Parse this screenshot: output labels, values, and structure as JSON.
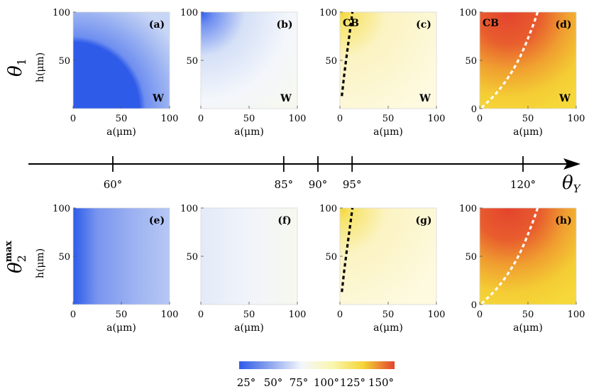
{
  "row_labels": {
    "top": "θ",
    "top_sub": "1",
    "bottom": "θ",
    "bottom_sub": "2",
    "bottom_sup": "max"
  },
  "axis": {
    "xlabel": "a(μm)",
    "ylabel": "h(μm)",
    "x_ticks": [
      "0",
      "50",
      "100"
    ],
    "y_ticks": [
      "100",
      "50",
      "0"
    ]
  },
  "theta_axis": {
    "label": "θ",
    "label_sub": "Y",
    "ticks": [
      "60°",
      "85°",
      "90°",
      "95°",
      "120°"
    ]
  },
  "colorbar": {
    "ticks": [
      "25°",
      "50°",
      "75°",
      "100°",
      "125°",
      "150°"
    ],
    "colors": [
      "#2f5be9",
      "#8da6ee",
      "#f3f6fb",
      "#fbf6b0",
      "#f4d535",
      "#e3432d"
    ]
  },
  "chart_data": [
    {
      "panel": "(a)",
      "row": "θ1",
      "theta_Y": 60,
      "type": "heatmap",
      "xlim": [
        0,
        100
      ],
      "ylim": [
        0,
        100
      ],
      "region_labels": [
        "W"
      ],
      "boundary": null
    },
    {
      "panel": "(b)",
      "row": "θ1",
      "theta_Y": 85,
      "type": "heatmap",
      "xlim": [
        0,
        100
      ],
      "ylim": [
        0,
        100
      ],
      "region_labels": [
        "W"
      ],
      "boundary": null
    },
    {
      "panel": "(c)",
      "row": "θ1",
      "theta_Y": 95,
      "type": "heatmap",
      "xlim": [
        0,
        100
      ],
      "ylim": [
        0,
        100
      ],
      "region_labels": [
        "CB",
        "W"
      ],
      "boundary": {
        "style": "black-dashed",
        "points": [
          [
            2,
            13
          ],
          [
            5,
            40
          ],
          [
            9,
            70
          ],
          [
            13,
            100
          ]
        ]
      }
    },
    {
      "panel": "(d)",
      "row": "θ1",
      "theta_Y": 120,
      "type": "heatmap",
      "xlim": [
        0,
        100
      ],
      "ylim": [
        0,
        100
      ],
      "region_labels": [
        "CB",
        "W"
      ],
      "boundary": {
        "style": "white-dashed",
        "points": [
          [
            2,
            1
          ],
          [
            20,
            18
          ],
          [
            40,
            48
          ],
          [
            55,
            85
          ],
          [
            60,
            100
          ]
        ]
      }
    },
    {
      "panel": "(e)",
      "row": "θ2max",
      "theta_Y": 60,
      "type": "heatmap",
      "xlim": [
        0,
        100
      ],
      "ylim": [
        0,
        100
      ],
      "region_labels": [],
      "boundary": null
    },
    {
      "panel": "(f)",
      "row": "θ2max",
      "theta_Y": 85,
      "type": "heatmap",
      "xlim": [
        0,
        100
      ],
      "ylim": [
        0,
        100
      ],
      "region_labels": [],
      "boundary": null
    },
    {
      "panel": "(g)",
      "row": "θ2max",
      "theta_Y": 95,
      "type": "heatmap",
      "xlim": [
        0,
        100
      ],
      "ylim": [
        0,
        100
      ],
      "region_labels": [],
      "boundary": {
        "style": "black-dashed",
        "points": [
          [
            2,
            13
          ],
          [
            5,
            40
          ],
          [
            9,
            70
          ],
          [
            13,
            100
          ]
        ]
      }
    },
    {
      "panel": "(h)",
      "row": "θ2max",
      "theta_Y": 120,
      "type": "heatmap",
      "xlim": [
        0,
        100
      ],
      "ylim": [
        0,
        100
      ],
      "region_labels": [],
      "boundary": {
        "style": "white-dashed",
        "points": [
          [
            2,
            1
          ],
          [
            20,
            18
          ],
          [
            40,
            48
          ],
          [
            55,
            85
          ],
          [
            60,
            100
          ]
        ]
      }
    }
  ]
}
